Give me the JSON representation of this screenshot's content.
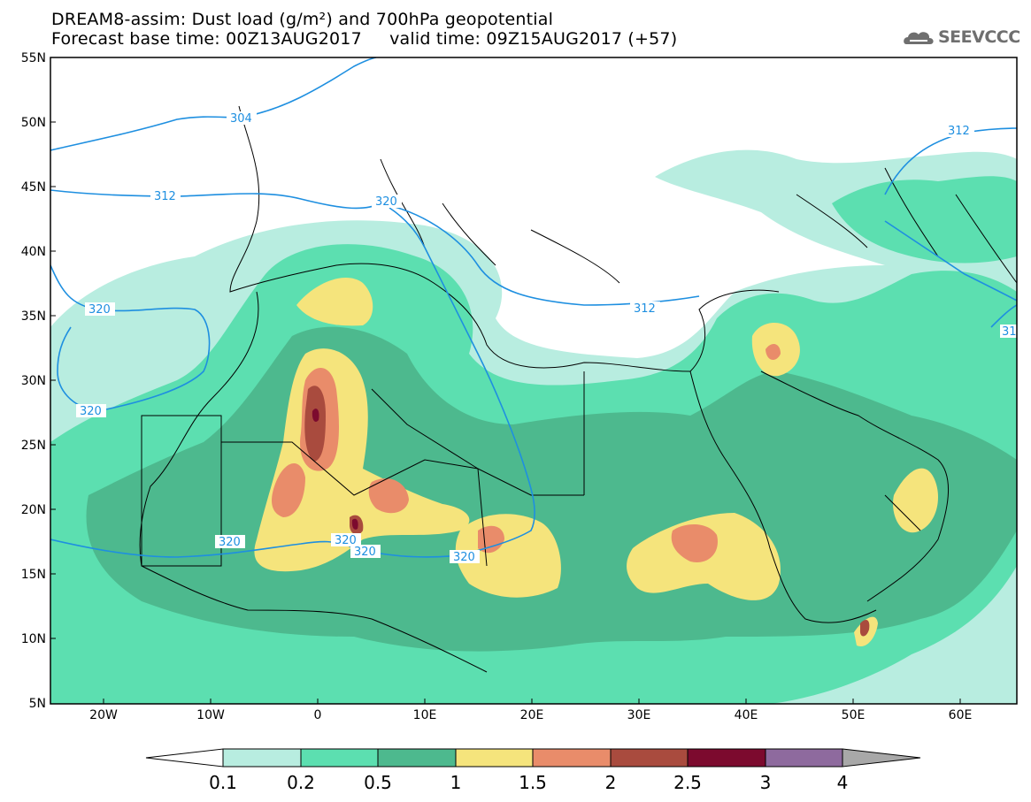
{
  "header": {
    "title_line1": "DREAM8-assim: Dust load (g/m²) and 700hPa geopotential",
    "title_line2": "Forecast base time: 00Z13AUG2017     valid time: 09Z15AUG2017 (+57)",
    "logo_text": "SEEVCCC",
    "logo_icon": "cloud-icon"
  },
  "map": {
    "lat_labels": [
      "55N",
      "50N",
      "45N",
      "40N",
      "35N",
      "30N",
      "25N",
      "20N",
      "15N",
      "10N",
      "5N"
    ],
    "lon_labels": [
      "20W",
      "10W",
      "0",
      "10E",
      "20E",
      "30E",
      "40E",
      "50E",
      "60E"
    ],
    "contour_labels": [
      "304",
      "312",
      "312",
      "312",
      "320",
      "320",
      "320",
      "320",
      "320",
      "320",
      "320",
      "31"
    ],
    "contour_color": "#1e8fe0"
  },
  "colorbar": {
    "labels": [
      "0.1",
      "0.2",
      "0.5",
      "1",
      "1.5",
      "2",
      "2.5",
      "3",
      "4"
    ],
    "colors": [
      "#ffffff",
      "#b8ede0",
      "#5cdfb0",
      "#4db98e",
      "#f5e47c",
      "#e98c6a",
      "#a94b3e",
      "#7c0a2e",
      "#8e6a9e",
      "#a8a8a8"
    ]
  }
}
